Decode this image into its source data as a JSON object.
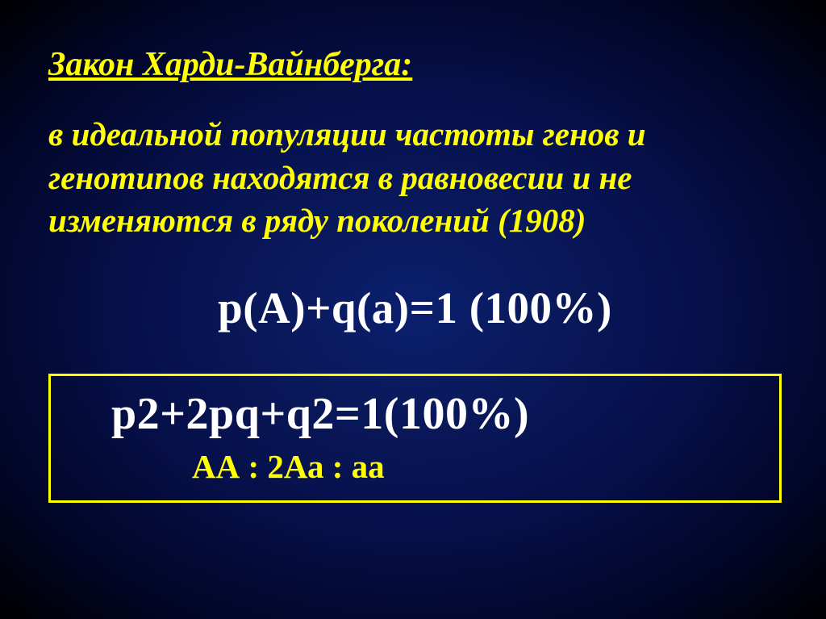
{
  "slide": {
    "title": "Закон Харди-Вайнберга:",
    "description": "в идеальной популяции частоты генов и генотипов находятся в равновесии и не изменяются в ряду поколений (1908)",
    "formula1": "p(A)+q(a)=1 (100%)",
    "formula2": "p2+2pq+q2=1(100%)",
    "ratio": "АА  : 2Аа  : аа"
  },
  "style": {
    "title_color": "#ffff00",
    "desc_color": "#ffff00",
    "formula_color": "#ffffff",
    "ratio_color": "#ffff00",
    "border_color": "#ffff00",
    "bg_center": "#0a1f6e",
    "bg_edge": "#000000",
    "title_fontsize": 42,
    "desc_fontsize": 41,
    "formula1_fontsize": 55,
    "formula2_fontsize": 56,
    "ratio_fontsize": 41
  }
}
